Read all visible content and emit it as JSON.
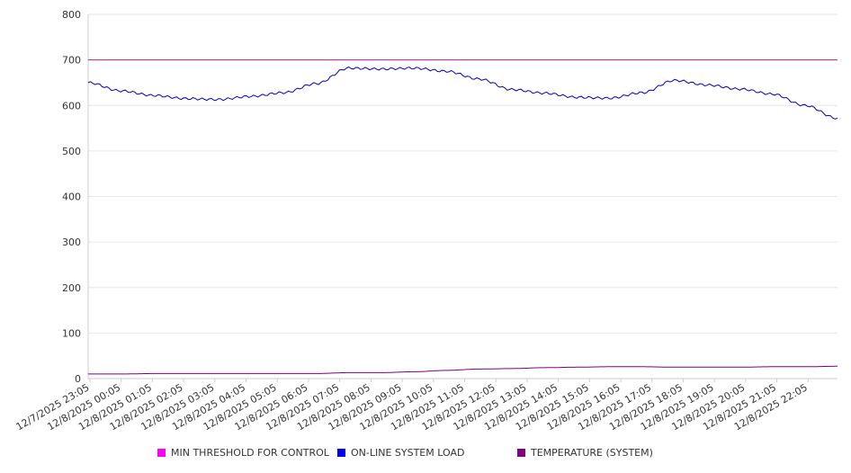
{
  "chart_data": {
    "type": "line",
    "title": "",
    "xlabel": "",
    "ylabel": "",
    "ylim": [
      0,
      800
    ],
    "yticks": [
      0,
      100,
      200,
      300,
      400,
      500,
      600,
      700,
      800
    ],
    "grid": true,
    "legend_position": "bottom",
    "x_tick_labels": [
      "12/7/2025 23:05",
      "12/8/2025 00:05",
      "12/8/2025 01:05",
      "12/8/2025 02:05",
      "12/8/2025 03:05",
      "12/8/2025 04:05",
      "12/8/2025 05:05",
      "12/8/2025 06:05",
      "12/8/2025 07:05",
      "12/8/2025 08:05",
      "12/8/2025 09:05",
      "12/8/2025 10:05",
      "12/8/2025 11:05",
      "12/8/2025 12:05",
      "12/8/2025 13:05",
      "12/8/2025 14:05",
      "12/8/2025 15:05",
      "12/8/2025 16:05",
      "12/8/2025 17:05",
      "12/8/2025 18:05",
      "12/8/2025 19:05",
      "12/8/2025 20:05",
      "12/8/2025 21:05",
      "12/8/2025 22:05"
    ],
    "series": [
      {
        "name": "MIN THRESHOLD FOR CONTROL",
        "color": "#b8238f",
        "values": [
          700,
          700,
          700,
          700,
          700,
          700,
          700,
          700,
          700,
          700,
          700,
          700,
          700,
          700,
          700,
          700,
          700,
          700,
          700,
          700,
          700,
          700,
          700,
          700
        ]
      },
      {
        "name": "ON-LINE SYSTEM LOAD",
        "color": "#0000cc",
        "values": [
          650,
          632,
          622,
          615,
          613,
          620,
          628,
          648,
          682,
          680,
          682,
          675,
          658,
          635,
          627,
          618,
          616,
          628,
          655,
          645,
          636,
          625,
          600,
          572
        ]
      },
      {
        "name": "TEMPERATURE (SYSTEM)",
        "color": "#800080",
        "values": [
          10,
          10,
          11,
          11,
          11,
          11,
          11,
          11,
          13,
          13,
          15,
          18,
          21,
          22,
          24,
          25,
          26,
          26,
          25,
          25,
          25,
          26,
          26,
          27
        ]
      }
    ],
    "legend": [
      {
        "label": "MIN THRESHOLD FOR CONTROL",
        "color": "#ff00ff"
      },
      {
        "label": "ON-LINE SYSTEM LOAD",
        "color": "#0000ee"
      },
      {
        "label": "TEMPERATURE (SYSTEM)",
        "color": "#800080"
      }
    ]
  }
}
